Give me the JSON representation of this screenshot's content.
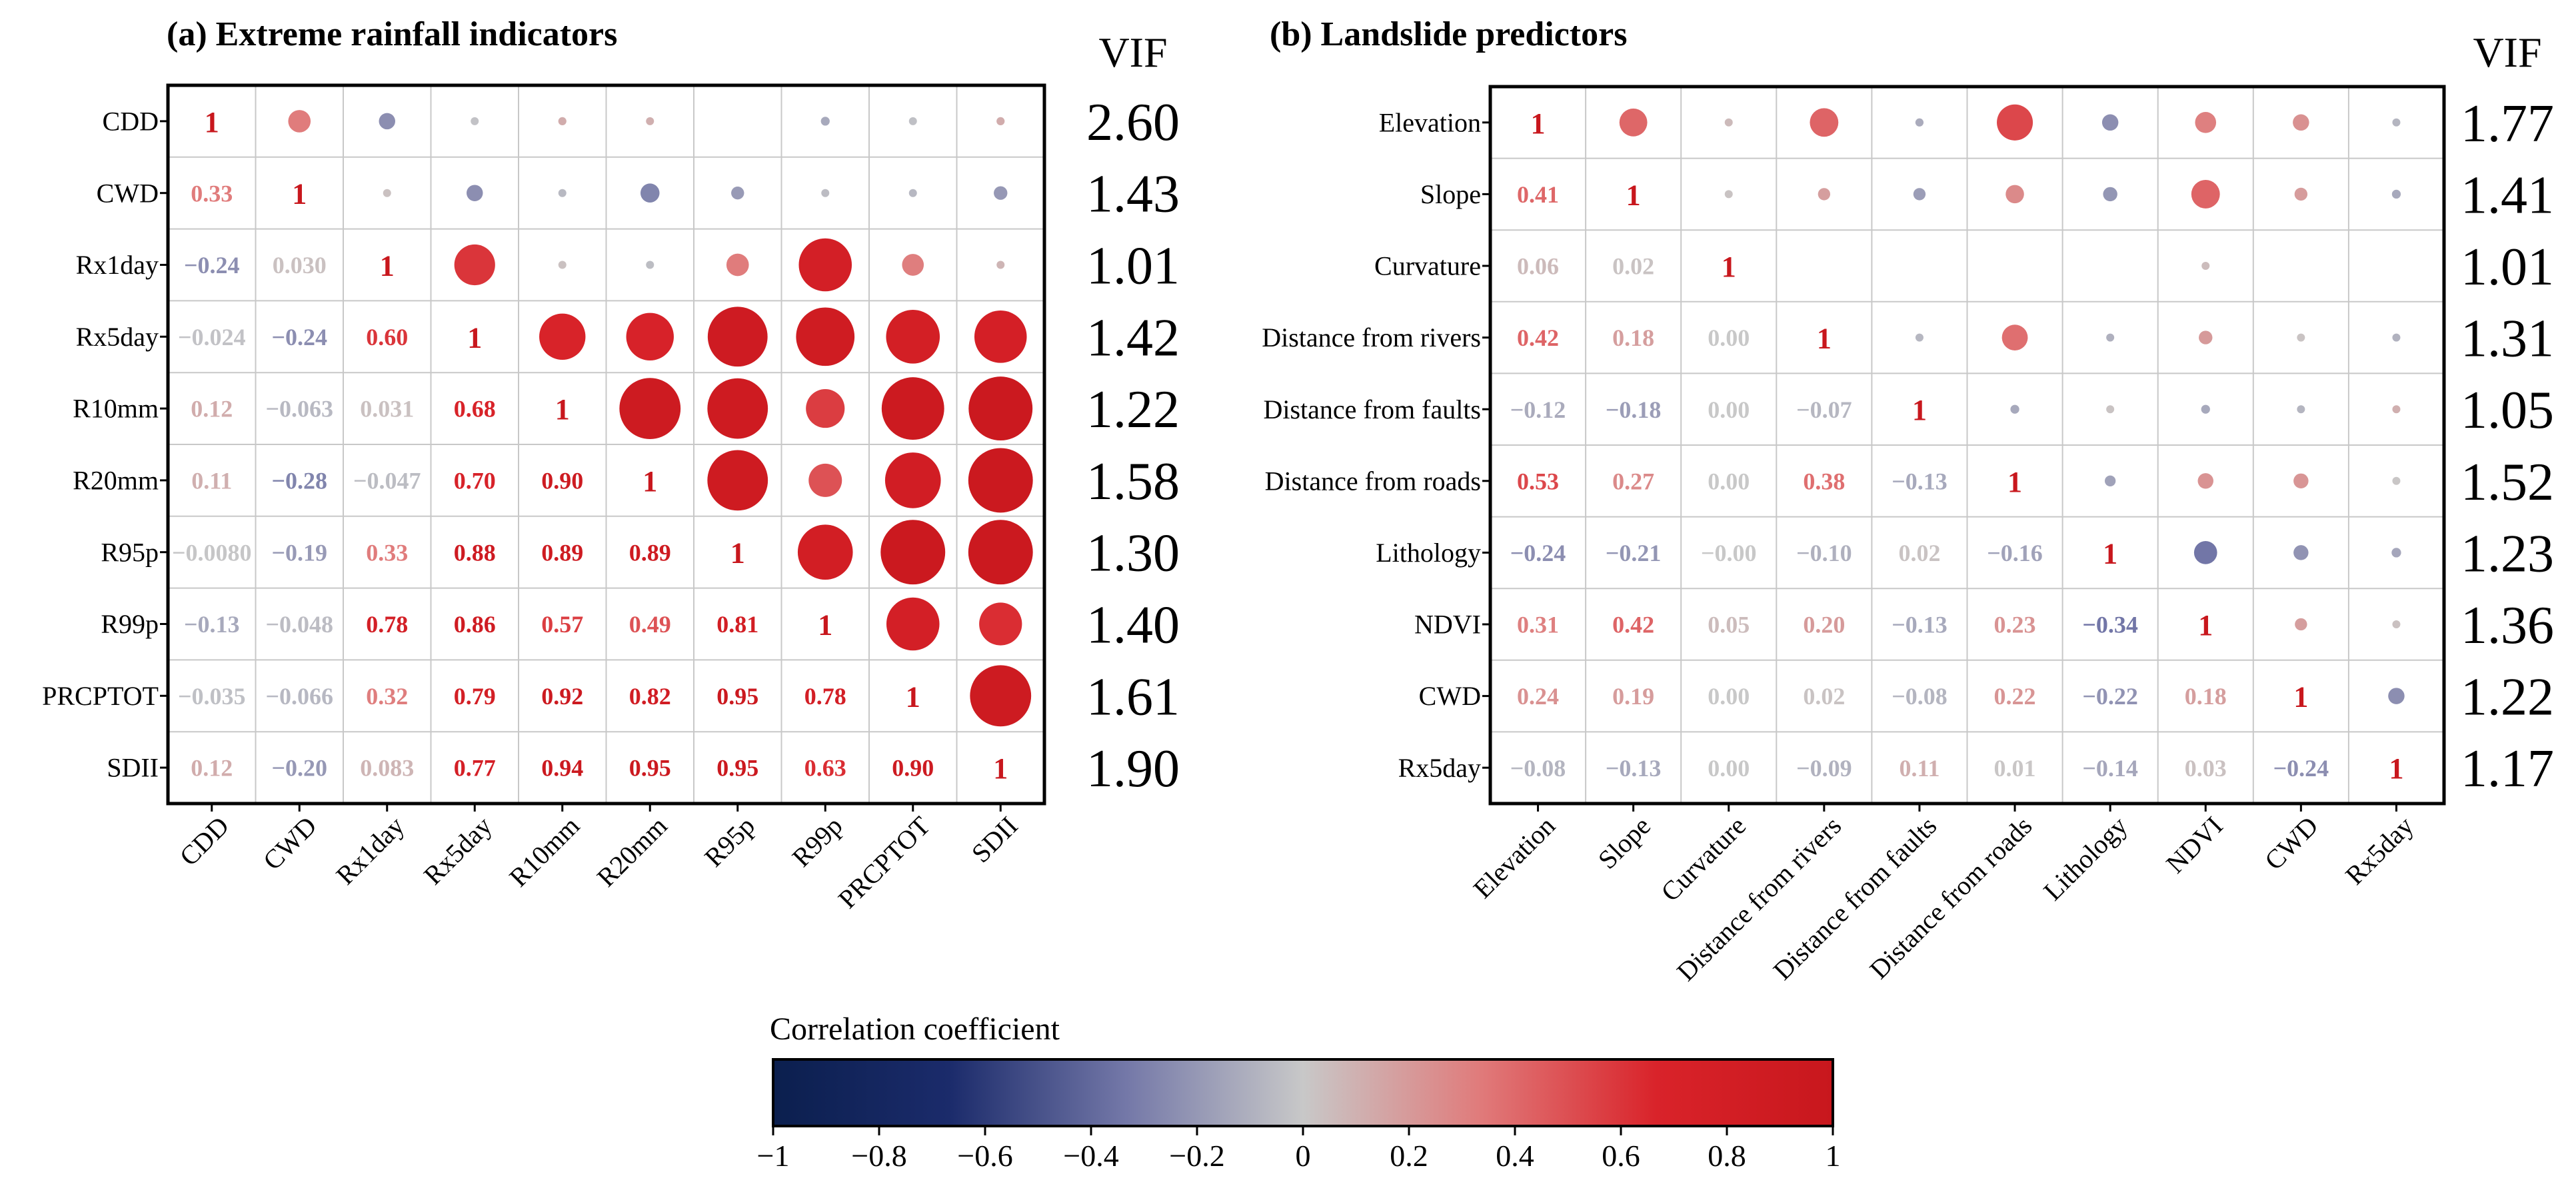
{
  "chart_data": [
    {
      "type": "heatmap",
      "title": "(a) Extreme rainfall indicators",
      "vif_header": "VIF",
      "variables": [
        "CDD",
        "CWD",
        "Rx1day",
        "Rx5day",
        "R10mm",
        "R20mm",
        "R95p",
        "R99p",
        "PRCPTOT",
        "SDII"
      ],
      "lower_labels": [
        [],
        [
          "0.33"
        ],
        [
          "−0.24",
          "0.030"
        ],
        [
          "−0.024",
          "−0.24",
          "0.60"
        ],
        [
          "0.12",
          "−0.063",
          "0.031",
          "0.68"
        ],
        [
          "0.11",
          "−0.28",
          "−0.047",
          "0.70",
          "0.90"
        ],
        [
          "−0.0080",
          "−0.19",
          "0.33",
          "0.88",
          "0.89",
          "0.89"
        ],
        [
          "−0.13",
          "−0.048",
          "0.78",
          "0.86",
          "0.57",
          "0.49",
          "0.81"
        ],
        [
          "−0.035",
          "−0.066",
          "0.32",
          "0.79",
          "0.92",
          "0.82",
          "0.95",
          "0.78"
        ],
        [
          "0.12",
          "−0.20",
          "0.083",
          "0.77",
          "0.94",
          "0.95",
          "0.95",
          "0.63",
          "0.90"
        ]
      ],
      "diagonal_label": "1",
      "matrix": [
        [
          1,
          0.33,
          -0.24,
          -0.024,
          0.12,
          0.11,
          -0.008,
          -0.13,
          -0.035,
          0.12
        ],
        [
          0.33,
          1,
          0.03,
          -0.24,
          -0.063,
          -0.28,
          -0.19,
          -0.048,
          -0.066,
          -0.2
        ],
        [
          -0.24,
          0.03,
          1,
          0.6,
          0.031,
          -0.047,
          0.33,
          0.78,
          0.32,
          0.083
        ],
        [
          -0.024,
          -0.24,
          0.6,
          1,
          0.68,
          0.7,
          0.88,
          0.86,
          0.79,
          0.77
        ],
        [
          0.12,
          -0.063,
          0.031,
          0.68,
          1,
          0.9,
          0.89,
          0.57,
          0.92,
          0.94
        ],
        [
          0.11,
          -0.28,
          -0.047,
          0.7,
          0.9,
          1,
          0.89,
          0.49,
          0.82,
          0.95
        ],
        [
          -0.008,
          -0.19,
          0.33,
          0.88,
          0.89,
          0.89,
          1,
          0.81,
          0.95,
          0.95
        ],
        [
          -0.13,
          -0.048,
          0.78,
          0.86,
          0.57,
          0.49,
          0.81,
          1,
          0.78,
          0.63
        ],
        [
          -0.035,
          -0.066,
          0.32,
          0.79,
          0.92,
          0.82,
          0.95,
          0.78,
          1,
          0.9
        ],
        [
          0.12,
          -0.2,
          0.083,
          0.77,
          0.94,
          0.95,
          0.95,
          0.63,
          0.9,
          1
        ]
      ],
      "vif": [
        "2.60",
        "1.43",
        "1.01",
        "1.42",
        "1.22",
        "1.58",
        "1.30",
        "1.40",
        "1.61",
        "1.90"
      ]
    },
    {
      "type": "heatmap",
      "title": "(b) Landslide predictors",
      "vif_header": "VIF",
      "variables": [
        "Elevation",
        "Slope",
        "Curvature",
        "Distance from rivers",
        "Distance from faults",
        "Distance from roads",
        "Lithology",
        "NDVI",
        "CWD",
        "Rx5day"
      ],
      "lower_labels": [
        [],
        [
          "0.41"
        ],
        [
          "0.06",
          "0.02"
        ],
        [
          "0.42",
          "0.18",
          "0.00"
        ],
        [
          "−0.12",
          "−0.18",
          "0.00",
          "−0.07"
        ],
        [
          "0.53",
          "0.27",
          "0.00",
          "0.38",
          "−0.13"
        ],
        [
          "−0.24",
          "−0.21",
          "−0.00",
          "−0.10",
          "0.02",
          "−0.16"
        ],
        [
          "0.31",
          "0.42",
          "0.05",
          "0.20",
          "−0.13",
          "0.23",
          "−0.34"
        ],
        [
          "0.24",
          "0.19",
          "0.00",
          "0.02",
          "−0.08",
          "0.22",
          "−0.22",
          "0.18"
        ],
        [
          "−0.08",
          "−0.13",
          "0.00",
          "−0.09",
          "0.11",
          "0.01",
          "−0.14",
          "0.03",
          "−0.24"
        ]
      ],
      "diagonal_label": "1",
      "matrix": [
        [
          1,
          0.41,
          0.06,
          0.42,
          -0.12,
          0.53,
          -0.24,
          0.31,
          0.24,
          -0.08
        ],
        [
          0.41,
          1,
          0.02,
          0.18,
          -0.18,
          0.27,
          -0.21,
          0.42,
          0.19,
          -0.13
        ],
        [
          0.06,
          0.02,
          1,
          0,
          0,
          0,
          0,
          0.05,
          0,
          0
        ],
        [
          0.42,
          0.18,
          0,
          1,
          -0.07,
          0.38,
          -0.1,
          0.2,
          0.02,
          -0.09
        ],
        [
          -0.12,
          -0.18,
          0,
          -0.07,
          1,
          -0.13,
          0.02,
          -0.13,
          -0.08,
          0.11
        ],
        [
          0.53,
          0.27,
          0,
          0.38,
          -0.13,
          1,
          -0.16,
          0.23,
          0.22,
          0.01
        ],
        [
          -0.24,
          -0.21,
          0,
          -0.1,
          0.02,
          -0.16,
          1,
          -0.34,
          -0.22,
          -0.14
        ],
        [
          0.31,
          0.42,
          0.05,
          0.2,
          -0.13,
          0.23,
          -0.34,
          1,
          0.18,
          0.03
        ],
        [
          0.24,
          0.19,
          0,
          0.02,
          -0.08,
          0.22,
          -0.22,
          0.18,
          1,
          -0.24
        ],
        [
          -0.08,
          -0.13,
          0,
          -0.09,
          0.11,
          0.01,
          -0.14,
          0.03,
          -0.24,
          1
        ]
      ],
      "vif": [
        "1.77",
        "1.41",
        "1.01",
        "1.31",
        "1.05",
        "1.52",
        "1.23",
        "1.36",
        "1.22",
        "1.17"
      ]
    }
  ],
  "colorbar": {
    "title": "Correlation coefficient",
    "range": [
      -1,
      1
    ],
    "ticks": [
      "−1",
      "−0.8",
      "−0.6",
      "−0.4",
      "−0.2",
      "0",
      "0.2",
      "0.4",
      "0.6",
      "0.8",
      "1"
    ],
    "colors": [
      "#0b1f4e",
      "#1b2b6b",
      "#7478a8",
      "#c8c8c8",
      "#e07b7b",
      "#d9232a",
      "#c8171d"
    ]
  }
}
